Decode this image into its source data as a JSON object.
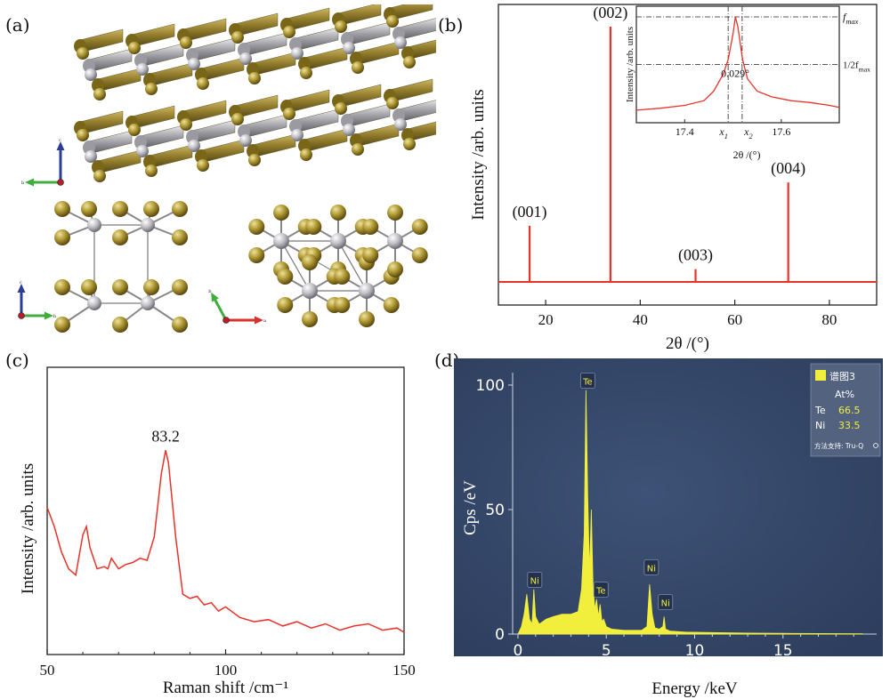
{
  "labels": {
    "a": "(a)",
    "b": "(b)",
    "c": "(c)",
    "d": "(d)"
  },
  "chart_data": [
    {
      "id": "b",
      "type": "line",
      "xlabel": "2θ /(°)",
      "ylabel": "Intensity /arb. units",
      "xlim": [
        10,
        90
      ],
      "xticks": [
        20,
        40,
        60,
        80
      ],
      "color": "#e8322a",
      "peaks": [
        {
          "x": 16.6,
          "h": 0.22,
          "label": "(001)"
        },
        {
          "x": 33.7,
          "h": 1.0,
          "label": "(002)"
        },
        {
          "x": 51.7,
          "h": 0.05,
          "label": "(003)"
        },
        {
          "x": 71.3,
          "h": 0.39,
          "label": "(004)"
        }
      ],
      "inset": {
        "xlabel": "2θ /(°)",
        "ylabel": "Intensity /arb. units",
        "xlim": [
          17.3,
          17.72
        ],
        "xticks": [
          17.4,
          17.6
        ],
        "x1_label": "x1",
        "x2_label": "x2",
        "fmax_label": "fmax",
        "half_label": "1/2fmax",
        "width_label": "0.029°",
        "x1": 17.49,
        "x2": 17.519,
        "x": [
          17.3,
          17.35,
          17.4,
          17.44,
          17.46,
          17.48,
          17.49,
          17.5,
          17.505,
          17.51,
          17.52,
          17.53,
          17.55,
          17.58,
          17.62,
          17.66,
          17.7,
          17.72
        ],
        "y": [
          0.02,
          0.04,
          0.07,
          0.12,
          0.22,
          0.4,
          0.55,
          0.82,
          1.0,
          0.9,
          0.55,
          0.35,
          0.22,
          0.16,
          0.12,
          0.1,
          0.07,
          0.05
        ]
      }
    },
    {
      "id": "c",
      "type": "line",
      "xlabel": "Raman shift /cm⁻¹",
      "ylabel": "Intensity /arb. units",
      "xlim": [
        50,
        150
      ],
      "xticks": [
        50,
        100,
        150
      ],
      "color": "#e8322a",
      "peak_label": "83.2",
      "peak_x": 83.2,
      "x": [
        50,
        52,
        54,
        56,
        58,
        60,
        61,
        62,
        64,
        66,
        67,
        68,
        70,
        72,
        74,
        76,
        78,
        80,
        82,
        83.2,
        84,
        86,
        88,
        90,
        92,
        94,
        96,
        98,
        100,
        104,
        108,
        112,
        116,
        120,
        124,
        128,
        132,
        136,
        140,
        144,
        148,
        150
      ],
      "y": [
        0.59,
        0.5,
        0.38,
        0.3,
        0.27,
        0.46,
        0.5,
        0.4,
        0.3,
        0.31,
        0.3,
        0.35,
        0.3,
        0.32,
        0.33,
        0.35,
        0.34,
        0.45,
        0.75,
        0.86,
        0.8,
        0.45,
        0.18,
        0.16,
        0.17,
        0.13,
        0.14,
        0.1,
        0.12,
        0.07,
        0.05,
        0.06,
        0.03,
        0.05,
        0.02,
        0.04,
        0.01,
        0.03,
        0.04,
        0.01,
        0.02,
        0.0
      ]
    },
    {
      "id": "d",
      "type": "area",
      "xlabel": "Energy /keV",
      "ylabel": "Cps /eV",
      "xlim": [
        -0.3,
        20.3
      ],
      "ylim": [
        0,
        105
      ],
      "xticks": [
        0,
        5,
        10,
        15
      ],
      "yticks": [
        0,
        50,
        100
      ],
      "color": "#f1ef3c",
      "background": "#2e3e5e",
      "x": [
        0.0,
        0.2,
        0.35,
        0.5,
        0.65,
        0.8,
        0.9,
        1.0,
        1.2,
        1.6,
        2.0,
        2.5,
        3.0,
        3.4,
        3.6,
        3.75,
        3.85,
        3.95,
        4.05,
        4.15,
        4.25,
        4.35,
        4.45,
        4.55,
        4.65,
        4.75,
        4.85,
        5.0,
        5.3,
        6.0,
        7.0,
        7.3,
        7.45,
        7.6,
        7.75,
        8.0,
        8.2,
        8.27,
        8.35,
        8.6,
        9.5,
        11,
        13,
        15,
        17,
        19.5
      ],
      "y": [
        0,
        3,
        8,
        16,
        6,
        4,
        18,
        7,
        4,
        6,
        7,
        8,
        8,
        9,
        18,
        40,
        98,
        55,
        25,
        50,
        20,
        10,
        14,
        7,
        12,
        5,
        6,
        3,
        2,
        1.5,
        1.5,
        3,
        20,
        8,
        2.5,
        2,
        3,
        7,
        2,
        1.2,
        0.8,
        0.6,
        0.4,
        0.3,
        0.2,
        0.1
      ],
      "peak_labels": [
        {
          "x": 0.95,
          "y": 17,
          "label": "Ni"
        },
        {
          "x": 3.95,
          "y": 97,
          "label": "Te"
        },
        {
          "x": 4.7,
          "y": 13,
          "label": "Te"
        },
        {
          "x": 7.55,
          "y": 22,
          "label": "Ni"
        },
        {
          "x": 8.35,
          "y": 8,
          "label": "Ni"
        }
      ],
      "legend": {
        "series_name": "谱图3",
        "header": "At%",
        "rows": [
          {
            "element": "Te",
            "value": "66.5"
          },
          {
            "element": "Ni",
            "value": "33.5"
          }
        ],
        "footer": "方法支持: Tru-Q"
      }
    }
  ],
  "structure": {
    "atom_colors": {
      "te": "#9c8a2c",
      "ni": "#b8b8be"
    },
    "axes": {
      "top": [
        "c",
        "b"
      ],
      "left": [
        "c",
        "b"
      ],
      "right": [
        "b",
        "a"
      ]
    }
  }
}
